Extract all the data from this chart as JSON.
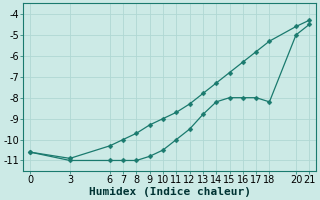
{
  "xlabel": "Humidex (Indice chaleur)",
  "background_color": "#cceae6",
  "line_color": "#1a7a6e",
  "grid_color": "#b0d8d4",
  "line1_x": [
    0,
    3,
    6,
    7,
    8,
    9,
    10,
    11,
    12,
    13,
    14,
    15,
    16,
    17,
    18,
    20,
    21
  ],
  "line1_y": [
    -10.6,
    -11.0,
    -11.0,
    -11.0,
    -11.0,
    -10.8,
    -10.5,
    -10.0,
    -9.5,
    -8.8,
    -8.2,
    -8.0,
    -8.0,
    -8.0,
    -8.2,
    -5.0,
    -4.5
  ],
  "line2_x": [
    0,
    3,
    6,
    7,
    8,
    9,
    10,
    11,
    12,
    13,
    14,
    15,
    16,
    17,
    18,
    20,
    21
  ],
  "line2_y": [
    -10.6,
    -10.9,
    -10.3,
    -10.0,
    -9.7,
    -9.3,
    -9.0,
    -8.7,
    -8.3,
    -7.8,
    -7.3,
    -6.8,
    -6.3,
    -5.8,
    -5.3,
    -4.6,
    -4.3
  ],
  "xlim": [
    -0.5,
    21.5
  ],
  "ylim": [
    -11.5,
    -3.5
  ],
  "xticks": [
    0,
    3,
    6,
    7,
    8,
    9,
    10,
    11,
    12,
    13,
    14,
    15,
    16,
    17,
    18,
    20,
    21
  ],
  "yticks": [
    -11,
    -10,
    -9,
    -8,
    -7,
    -6,
    -5,
    -4
  ],
  "tick_fontsize": 7,
  "label_fontsize": 8
}
